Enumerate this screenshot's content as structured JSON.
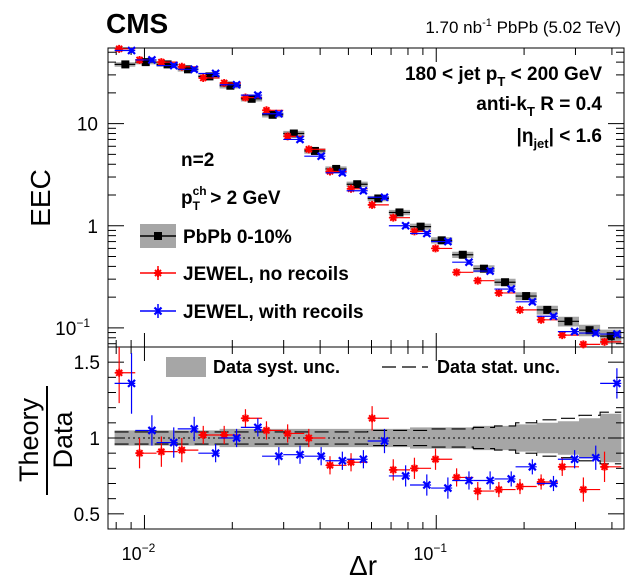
{
  "header": {
    "experiment": "CMS",
    "lumi_value": "1.70 nb",
    "lumi_exp": "-1",
    "lumi_rest": " PbPb (5.02 TeV)"
  },
  "labels": {
    "jet_pt_pre": "180 < jet p",
    "jet_pt_sub": "T",
    "jet_pt_post": " < 200 GeV",
    "algo_pre": "anti-k",
    "algo_sub": "T",
    "algo_post": " R = 0.4",
    "eta_pre": "|η",
    "eta_sub": "jet",
    "eta_post": "| < 1.6",
    "n_label": "n=2",
    "pt_pre": "p",
    "pt_sup": "ch",
    "pt_sub": "T",
    "pt_post": " > 2 GeV"
  },
  "chart_data": {
    "type": "scatter",
    "top_panel": {
      "ylabel": "EEC",
      "yscale": "log",
      "ylim": [
        0.065,
        55
      ],
      "xlim": [
        0.0075,
        0.44
      ],
      "xscale": "log",
      "yticks": [
        "10",
        "1",
        "10"
      ],
      "ytick_exp": "−1",
      "legend": [
        {
          "name": "PbPb 0-10%",
          "key": "data"
        },
        {
          "name": "JEWEL, no recoils",
          "key": "norec"
        },
        {
          "name": "JEWEL, with recoils",
          "key": "rec"
        }
      ]
    },
    "bottom_panel": {
      "ylabel_num": "Theory",
      "ylabel_den": "Data",
      "ylim": [
        0.4,
        1.6
      ],
      "yticks": [
        "0.5",
        "1",
        "1.5"
      ],
      "legend": [
        {
          "name": "Data syst. unc.",
          "key": "syst"
        },
        {
          "name": "Data stat. unc.",
          "key": "stat"
        }
      ]
    },
    "xlabel": "Δr",
    "xticks": [
      {
        "label": "10",
        "exp": "−2",
        "value": 0.01
      },
      {
        "label": "10",
        "exp": "−1",
        "value": 0.1
      }
    ],
    "x_bin_edges": [
      0.0079,
      0.0093,
      0.011,
      0.013,
      0.0153,
      0.0181,
      0.0214,
      0.0253,
      0.0299,
      0.0353,
      0.0417,
      0.0493,
      0.0582,
      0.0688,
      0.0813,
      0.096,
      0.1134,
      0.134,
      0.1583,
      0.187,
      0.221,
      0.2611,
      0.3085,
      0.3645,
      0.4306
    ],
    "x": [
      0.0086,
      0.0101,
      0.012,
      0.0141,
      0.0167,
      0.0197,
      0.0233,
      0.0275,
      0.0325,
      0.0384,
      0.0454,
      0.0536,
      0.0633,
      0.0748,
      0.0884,
      0.1044,
      0.1233,
      0.1457,
      0.1721,
      0.2033,
      0.2402,
      0.2838,
      0.3353,
      0.3962
    ],
    "series": [
      {
        "name": "PbPb 0-10%",
        "values": [
          38,
          40,
          38,
          34,
          29,
          23.5,
          17.5,
          12.2,
          8.0,
          5.4,
          3.6,
          2.55,
          1.85,
          1.35,
          0.98,
          0.72,
          0.52,
          0.38,
          0.28,
          0.205,
          0.15,
          0.116,
          0.095,
          0.083
        ],
        "syst_rel": [
          0.05,
          0.05,
          0.05,
          0.05,
          0.05,
          0.06,
          0.06,
          0.06,
          0.06,
          0.06,
          0.06,
          0.06,
          0.06,
          0.06,
          0.07,
          0.07,
          0.07,
          0.08,
          0.08,
          0.09,
          0.1,
          0.11,
          0.13,
          0.16
        ]
      },
      {
        "name": "JEWEL, no recoils",
        "values": [
          54,
          42,
          40,
          36,
          28,
          25,
          18,
          13.5,
          7.5,
          5.6,
          3.4,
          2.3,
          1.6,
          1.2,
          0.88,
          0.6,
          0.35,
          0.29,
          0.22,
          0.15,
          0.12,
          0.085,
          0.069,
          0.073
        ]
      },
      {
        "name": "JEWEL, with recoils",
        "values": [
          52,
          42,
          37,
          34,
          31,
          24,
          19,
          12.5,
          7.0,
          4.8,
          3.3,
          2.2,
          1.9,
          1.0,
          0.84,
          0.7,
          0.44,
          0.36,
          0.24,
          0.18,
          0.13,
          0.092,
          0.089,
          0.087
        ]
      }
    ],
    "ratio_series": [
      {
        "name": "JEWEL, no recoils",
        "values": [
          1.43,
          0.9,
          0.91,
          0.92,
          1.02,
          1.02,
          1.13,
          1.05,
          1.03,
          1.0,
          0.82,
          0.84,
          1.13,
          0.79,
          0.8,
          0.86,
          0.74,
          0.65,
          0.66,
          0.68,
          0.71,
          0.81,
          0.66,
          0.81
        ],
        "errors": [
          0.2,
          0.1,
          0.1,
          0.08,
          0.06,
          0.06,
          0.06,
          0.06,
          0.06,
          0.06,
          0.06,
          0.06,
          0.08,
          0.07,
          0.07,
          0.07,
          0.06,
          0.06,
          0.05,
          0.05,
          0.05,
          0.06,
          0.08,
          0.1
        ]
      },
      {
        "name": "JEWEL, with recoils",
        "values": [
          1.36,
          1.05,
          0.97,
          1.06,
          0.9,
          1.0,
          1.07,
          0.88,
          0.89,
          0.88,
          0.85,
          0.86,
          0.98,
          0.75,
          0.69,
          0.67,
          0.72,
          0.72,
          0.73,
          0.81,
          0.7,
          0.86,
          0.87,
          1.36
        ]
      },
      {
        "name": "stat",
        "upper_rel": [
          0.04,
          0.04,
          0.04,
          0.04,
          0.04,
          0.04,
          0.04,
          0.04,
          0.04,
          0.04,
          0.04,
          0.04,
          0.05,
          0.05,
          0.05,
          0.06,
          0.06,
          0.07,
          0.08,
          0.1,
          0.12,
          0.13,
          0.15,
          0.17
        ]
      }
    ]
  }
}
